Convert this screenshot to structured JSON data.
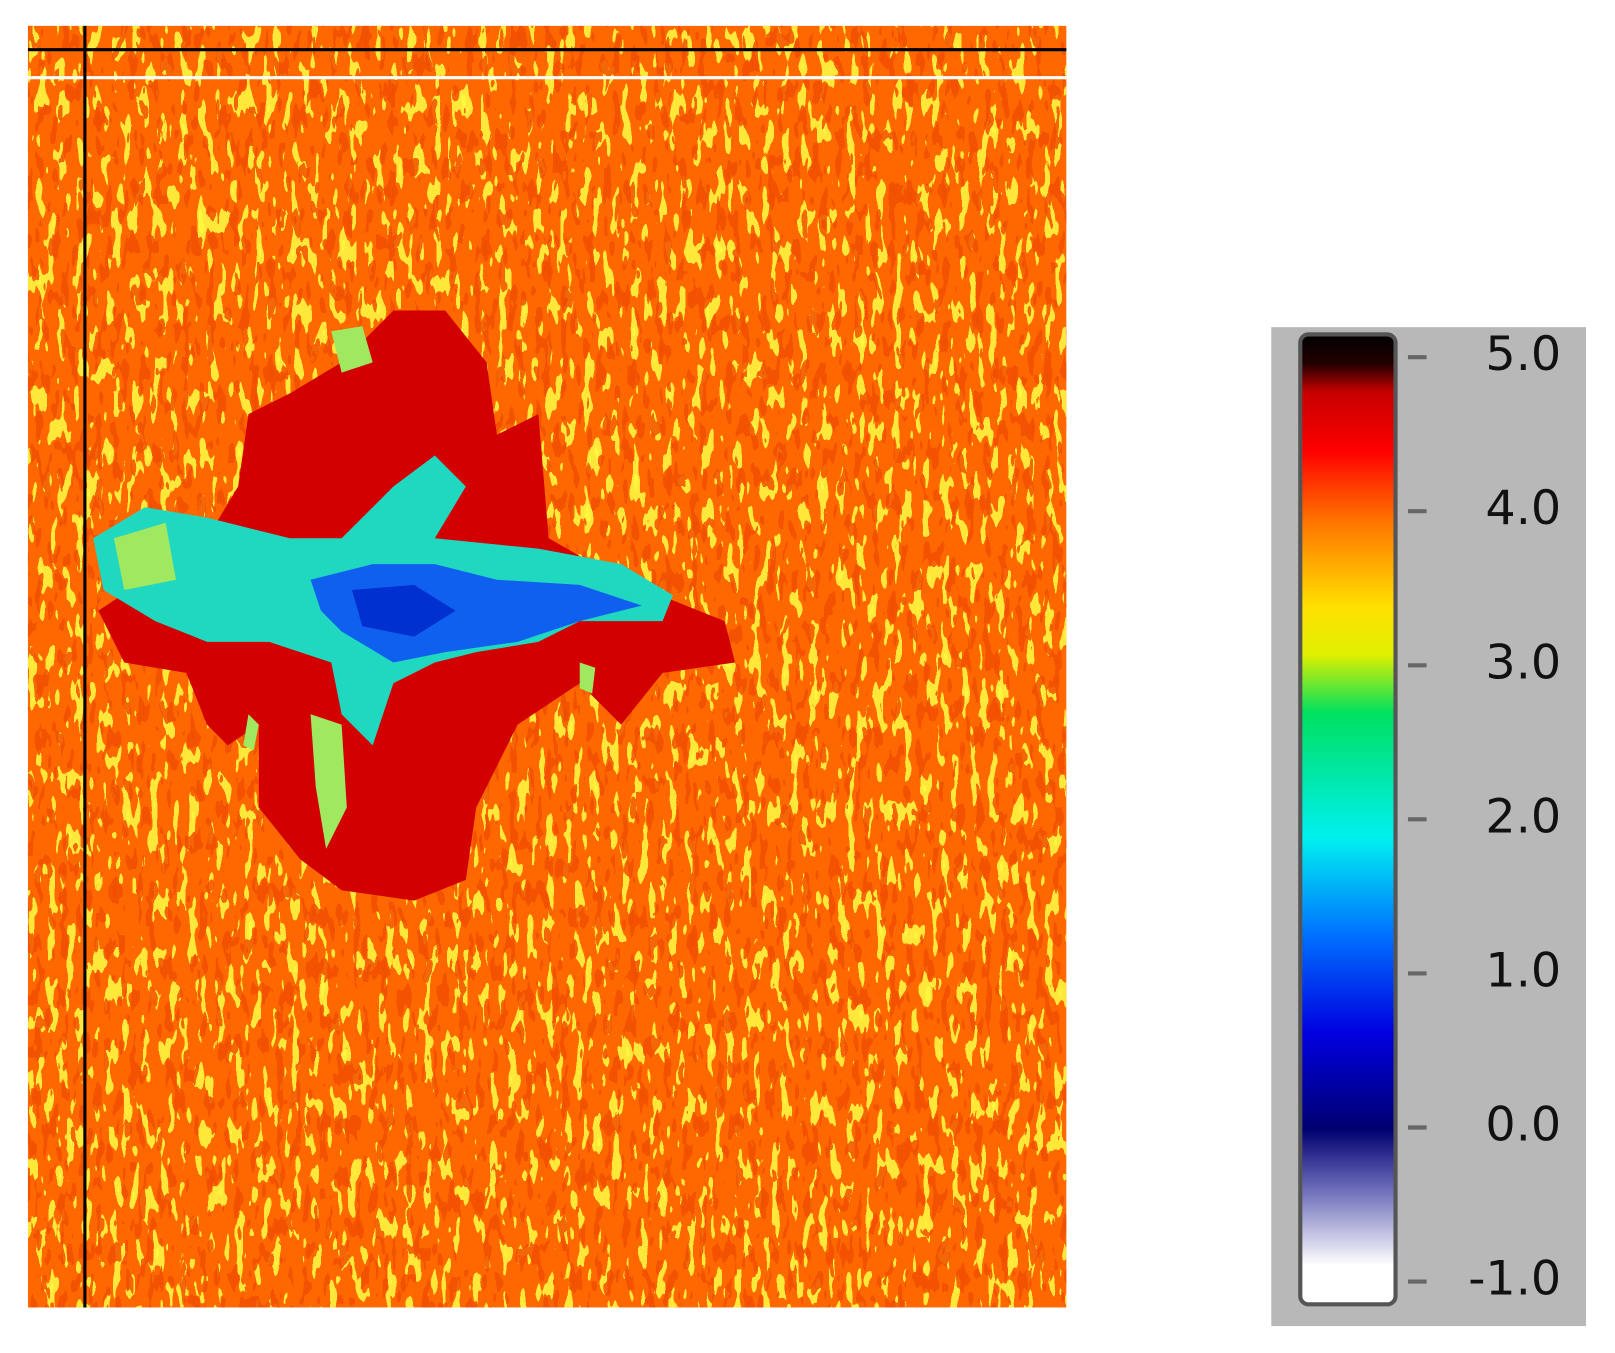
{
  "chart_data": {
    "type": "heatmap",
    "colorbar": {
      "ylim": [
        -1,
        5
      ],
      "yticks": [
        {
          "value": 5,
          "label": "5.0"
        },
        {
          "value": 4,
          "label": "4.0"
        },
        {
          "value": 3,
          "label": "3.0"
        },
        {
          "value": 2,
          "label": "2.0"
        },
        {
          "value": 1,
          "label": "1.0"
        },
        {
          "value": 0,
          "label": "0.0"
        },
        {
          "value": -1,
          "label": "-1.0"
        }
      ]
    }
  }
}
